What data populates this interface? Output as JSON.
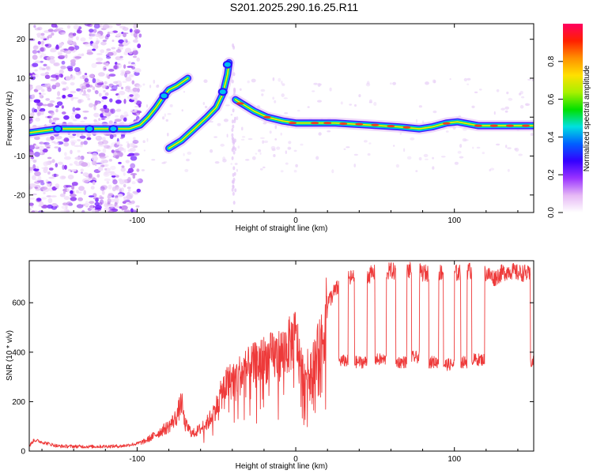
{
  "title": "S201.2025.290.16.25.R11",
  "chart_data": [
    {
      "type": "heatmap",
      "xlabel": "Height of straight line (km)",
      "ylabel": "Frequency (Hz)",
      "xlim": [
        -168,
        150
      ],
      "ylim": [
        -24.5,
        24
      ],
      "x_ticks": [
        -100,
        0,
        100
      ],
      "y_ticks": [
        -20,
        -10,
        0,
        10,
        20
      ],
      "x_tick_labels": [
        "-100",
        "0",
        "100"
      ],
      "y_tick_labels": [
        "-20",
        "-10",
        "0",
        "10",
        "20"
      ],
      "ridge": [
        {
          "x": -168,
          "y": -4
        },
        {
          "x": -150,
          "y": -3
        },
        {
          "x": -130,
          "y": -3
        },
        {
          "x": -115,
          "y": -3
        },
        {
          "x": -105,
          "y": -3
        },
        {
          "x": -98,
          "y": -2
        },
        {
          "x": -93,
          "y": 0
        },
        {
          "x": -88,
          "y": 2.5
        },
        {
          "x": -83,
          "y": 5.5
        },
        {
          "x": -80,
          "y": 7
        },
        {
          "x": -75,
          "y": 8
        },
        {
          "x": -68,
          "y": 10
        },
        {
          "x": -80,
          "y": -8
        },
        {
          "x": -72,
          "y": -6
        },
        {
          "x": -64,
          "y": -3
        },
        {
          "x": -56,
          "y": 0
        },
        {
          "x": -50,
          "y": 2.5
        },
        {
          "x": -46,
          "y": 6
        },
        {
          "x": -43,
          "y": 11
        },
        {
          "x": -42,
          "y": 14
        },
        {
          "x": -38,
          "y": 4.5
        },
        {
          "x": -32,
          "y": 3
        },
        {
          "x": -26,
          "y": 1.5
        },
        {
          "x": -18,
          "y": 0
        },
        {
          "x": -8,
          "y": -1
        },
        {
          "x": 0,
          "y": -1.5
        },
        {
          "x": 10,
          "y": -1.5
        },
        {
          "x": 25,
          "y": -1.5
        },
        {
          "x": 45,
          "y": -2
        },
        {
          "x": 65,
          "y": -2.5
        },
        {
          "x": 78,
          "y": -3
        },
        {
          "x": 86,
          "y": -2.5
        },
        {
          "x": 95,
          "y": -1.5
        },
        {
          "x": 102,
          "y": -1.2
        },
        {
          "x": 115,
          "y": -2.2
        },
        {
          "x": 150,
          "y": -2.2
        }
      ],
      "colorbar": {
        "label": "Normalized spectral amplitude",
        "range": [
          0,
          1
        ],
        "ticks": [
          0.0,
          0.2,
          0.4,
          0.6,
          0.8
        ],
        "tick_labels": [
          "0.0",
          "0.2",
          "0.4",
          "0.6",
          "0.8"
        ],
        "colors": [
          "#ffffff",
          "#e6b8f5",
          "#9a33ff",
          "#3300ff",
          "#0060ff",
          "#00e0e0",
          "#00e000",
          "#a8f000",
          "#ffe000",
          "#ff9000",
          "#ff2000",
          "#ff0060"
        ]
      }
    },
    {
      "type": "line",
      "xlabel": "Height of straight line (km)",
      "ylabel": "SNR (10 * v/v)",
      "xlim": [
        -168,
        150
      ],
      "ylim": [
        0,
        770
      ],
      "x_ticks": [
        -100,
        0,
        100
      ],
      "y_ticks": [
        0,
        200,
        400,
        600
      ],
      "x_tick_labels": [
        "-100",
        "0",
        "100"
      ],
      "y_tick_labels": [
        "0",
        "200",
        "400",
        "600"
      ],
      "color": "#ee3a3a",
      "series": [
        {
          "name": "SNR",
          "x": [
            -168,
            -165,
            -150,
            -130,
            -110,
            -100,
            -95,
            -90,
            -85,
            -80,
            -75,
            -72,
            -70,
            -65,
            -60,
            -55,
            -50,
            -45,
            -40,
            -35,
            -30,
            -25,
            -20,
            -15,
            -10,
            -5,
            0,
            5,
            10,
            15,
            18,
            20,
            25,
            30,
            35,
            40,
            45,
            50,
            55,
            60,
            65,
            70,
            75,
            80,
            85,
            90,
            95,
            100,
            105,
            110,
            115,
            120,
            125,
            130,
            135,
            140,
            145,
            150
          ],
          "y": [
            20,
            45,
            20,
            18,
            20,
            30,
            40,
            60,
            80,
            100,
            140,
            200,
            110,
            70,
            90,
            120,
            180,
            260,
            290,
            310,
            330,
            350,
            370,
            380,
            390,
            420,
            460,
            300,
            350,
            420,
            480,
            600,
            650,
            680,
            700,
            700,
            710,
            720,
            720,
            730,
            720,
            730,
            730,
            720,
            720,
            720,
            730,
            720,
            720,
            730,
            720,
            720,
            700,
            720,
            730,
            720,
            720,
            700
          ],
          "low_mode": [
            {
              "from": 27,
              "to": 33,
              "y": 365
            },
            {
              "from": 37,
              "to": 45,
              "y": 360
            },
            {
              "from": 50,
              "to": 57,
              "y": 370
            },
            {
              "from": 63,
              "to": 70,
              "y": 360
            },
            {
              "from": 73,
              "to": 78,
              "y": 380
            },
            {
              "from": 84,
              "to": 90,
              "y": 360
            },
            {
              "from": 93,
              "to": 100,
              "y": 350
            },
            {
              "from": 104,
              "to": 108,
              "y": 360
            },
            {
              "from": 111,
              "to": 119,
              "y": 370
            },
            {
              "from": 148,
              "to": 150,
              "y": 360
            }
          ]
        }
      ]
    }
  ]
}
